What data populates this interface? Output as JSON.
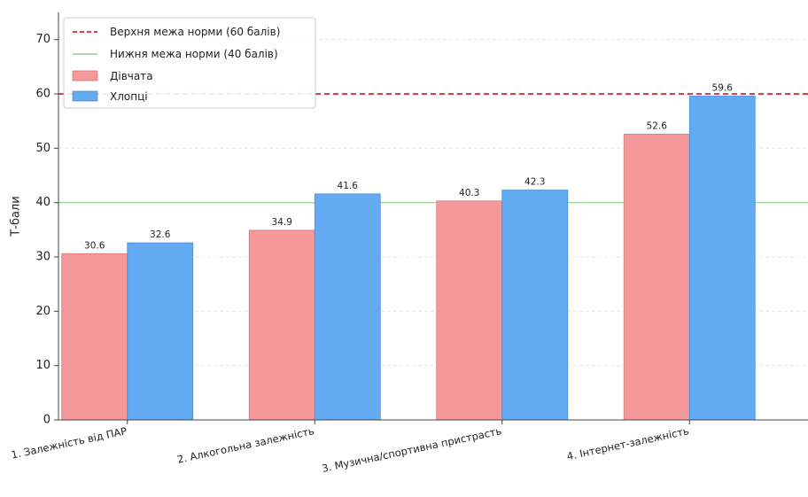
{
  "chart_data": {
    "type": "bar",
    "ylabel": "Т-бали",
    "xlabel": "",
    "ylim": [
      0,
      75
    ],
    "yticks": [
      0,
      10,
      20,
      30,
      40,
      50,
      60,
      70
    ],
    "categories": [
      "1. Залежність від ПАР",
      "2. Алкогольна залежність",
      "3. Музична/спортивна пристрасть",
      "4. Інтернет-залежність"
    ],
    "series": [
      {
        "name": "Дівчата",
        "values": [
          30.6,
          34.9,
          40.3,
          52.6
        ],
        "labels": [
          "30.6",
          "34.9",
          "40.3",
          "52.6"
        ],
        "color": "#f4989a"
      },
      {
        "name": "Хлопці",
        "values": [
          32.6,
          41.6,
          42.3,
          59.6
        ],
        "labels": [
          "32.6",
          "41.6",
          "42.3",
          "59.6"
        ],
        "color": "#62aaf2"
      }
    ],
    "reference_lines": [
      {
        "name": "Верхня межа норми (60 балів)",
        "value": 60,
        "color": "#e03a4e",
        "style": "dashed"
      },
      {
        "name": "Нижня межа норми (40 балів)",
        "value": 40,
        "color": "#8fcf8f",
        "style": "solid"
      }
    ],
    "grid": "y",
    "legend_position": "top-left"
  }
}
